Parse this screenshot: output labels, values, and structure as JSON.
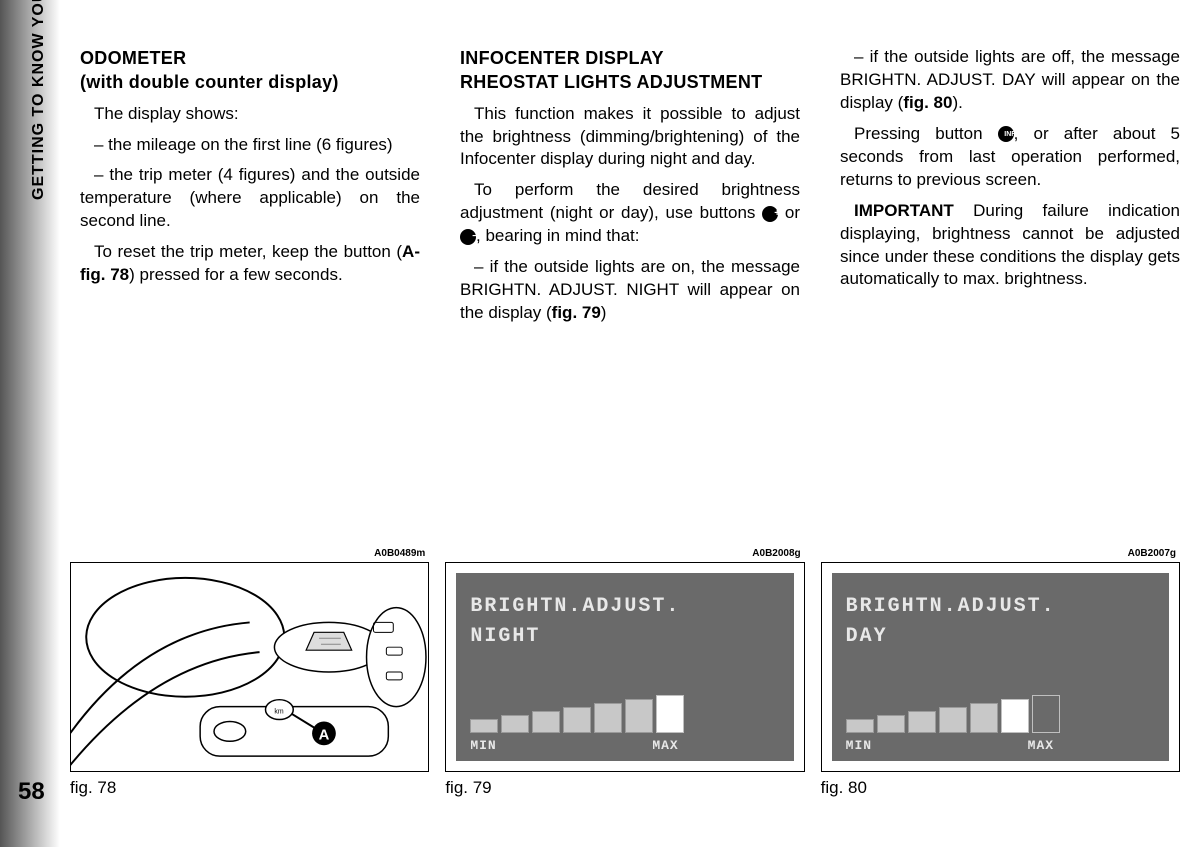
{
  "sidebar": {
    "label": "GETTING TO KNOW YOUR CAR"
  },
  "page_number": "58",
  "col1": {
    "h1": "ODOMETER",
    "h2": "(with double counter display)",
    "p1": "The display shows:",
    "p2": "– the mileage on the first line (6 figures)",
    "p3": "– the trip meter (4 figures) and the outside temperature (where applicable) on the second line.",
    "p4a": "To reset the trip meter, keep the button (",
    "p4b": "A-fig. 78",
    "p4c": ") pressed for a few seconds."
  },
  "col2": {
    "h1": "INFOCENTER DISPLAY",
    "h2": "RHEOSTAT LIGHTS ADJUSTMENT",
    "p1": "This function makes it possible to adjust the brightness (dimming/brightening) of the Infocenter display during night and day.",
    "p2a": "To perform the desired brightness adjustment (night or day), use buttons ",
    "p2b": " or ",
    "p2c": ", bearing in mind that:",
    "p3a": "– if the outside lights are on, the message BRIGHTN. ADJUST. NIGHT will appear on the display (",
    "p3b": "fig. 79",
    "p3c": ")"
  },
  "col3": {
    "p1a": "– if the outside lights are off, the message BRIGHTN. ADJUST. DAY will appear on the display (",
    "p1b": "fig. 80",
    "p1c": ").",
    "p2a": "Pressing button ",
    "p2b": ", or after about 5 seconds from last operation performed, returns to previous screen.",
    "p3a": "IMPORTANT",
    "p3b": " During failure indication displaying, brightness cannot be adjusted since under these conditions the display gets automatically to max. brightness."
  },
  "icons": {
    "plus": "+",
    "minus": "−",
    "info": "INFO"
  },
  "fig78": {
    "code": "A0B0489m",
    "caption": "fig. 78",
    "callout": "A"
  },
  "fig79": {
    "code": "A0B2008g",
    "caption": "fig. 79",
    "line1": "BRIGHTN.ADJUST.",
    "line2": "NIGHT",
    "min": "MIN",
    "max": "MAX",
    "bars": {
      "heights": [
        14,
        18,
        22,
        26,
        30,
        34,
        38
      ],
      "filled": 6,
      "selected_index": 6
    },
    "colors": {
      "bg": "#6a6a6a",
      "text": "#e8e8e8",
      "bar": "#c8c8c8",
      "sel": "#ffffff"
    }
  },
  "fig80": {
    "code": "A0B2007g",
    "caption": "fig. 80",
    "line1": "BRIGHTN.ADJUST.",
    "line2": "DAY",
    "min": "MIN",
    "max": "MAX",
    "bars": {
      "heights": [
        14,
        18,
        22,
        26,
        30,
        34,
        38
      ],
      "filled": 5,
      "selected_index": 5
    },
    "colors": {
      "bg": "#6a6a6a",
      "text": "#e8e8e8",
      "bar": "#c8c8c8",
      "sel": "#ffffff"
    }
  }
}
